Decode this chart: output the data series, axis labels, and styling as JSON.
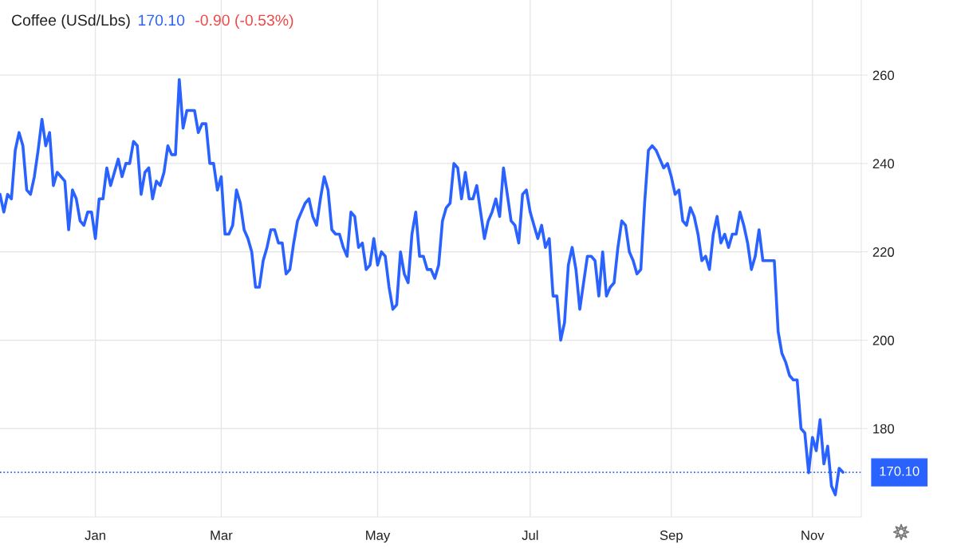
{
  "chart_data": {
    "type": "line",
    "title": "Coffee (USd/Lbs)",
    "annotations": [
      "170.10",
      "-0.90 (-0.53%)"
    ],
    "categories": [
      null,
      null,
      null,
      null,
      null,
      null,
      null,
      null,
      null,
      null,
      null,
      null,
      null,
      null,
      null,
      null,
      null,
      null,
      null,
      null,
      null,
      null,
      null,
      null,
      null,
      "Jan",
      null,
      null,
      null,
      null,
      null,
      null,
      null,
      null,
      null,
      null,
      null,
      null,
      null,
      null,
      null,
      null,
      null,
      null,
      null,
      null,
      null,
      null,
      null,
      null,
      null,
      null,
      null,
      null,
      null,
      null,
      null,
      null,
      "Mar",
      null,
      null,
      null,
      null,
      null,
      null,
      null,
      null,
      null,
      null,
      null,
      null,
      null,
      null,
      null,
      null,
      null,
      null,
      null,
      null,
      null,
      null,
      null,
      null,
      null,
      null,
      null,
      null,
      null,
      null,
      null,
      null,
      null,
      null,
      null,
      null,
      null,
      null,
      null,
      null,
      "May",
      null,
      null,
      null,
      null,
      null,
      null,
      null,
      null,
      null,
      null,
      null,
      null,
      null,
      null,
      null,
      null,
      null,
      null,
      null,
      null,
      null,
      null,
      null,
      null,
      null,
      null,
      null,
      null,
      null,
      null,
      null,
      null,
      null,
      null,
      null,
      null,
      null,
      null,
      null,
      "Jul",
      null,
      null,
      null,
      null,
      null,
      null,
      null,
      null,
      null,
      null,
      null,
      null,
      null,
      null,
      null,
      null,
      null,
      null,
      null,
      null,
      null,
      null,
      null,
      null,
      null,
      null,
      null,
      null,
      null,
      null,
      null,
      null,
      null,
      null,
      null,
      null,
      "Sep",
      null,
      null,
      null,
      null,
      null,
      null,
      null,
      null,
      null,
      null,
      null,
      null,
      null,
      null,
      null,
      null,
      null,
      null,
      null,
      null,
      null,
      null,
      null,
      null,
      null,
      null,
      null,
      null,
      null,
      null,
      null,
      null,
      null,
      null,
      null,
      null,
      "Nov",
      null,
      null,
      null,
      null,
      null,
      null,
      null,
      null
    ],
    "series": [
      {
        "color": "#2962ff",
        "values": [
          233,
          229,
          233,
          232,
          243,
          247,
          244,
          234,
          233,
          237,
          243,
          250,
          244,
          247,
          235,
          238,
          237,
          236,
          225,
          234,
          232,
          227,
          226,
          229,
          229,
          223,
          232,
          232,
          239,
          235,
          238,
          241,
          237,
          240,
          240,
          245,
          244,
          233,
          238,
          239,
          232,
          236,
          235,
          238,
          244,
          242,
          242,
          259,
          248,
          252,
          252,
          252,
          247,
          249,
          249,
          240,
          240,
          234,
          237,
          224,
          224,
          226,
          234,
          231,
          225,
          223,
          220,
          212,
          212,
          218,
          221,
          225,
          225,
          222,
          222,
          215,
          216,
          222,
          227,
          229,
          231,
          232,
          228,
          226,
          232,
          237,
          234,
          225,
          224,
          224,
          221,
          219,
          229,
          228,
          221,
          222,
          216,
          217,
          223,
          217,
          220,
          219,
          212,
          207,
          208,
          220,
          215,
          213,
          224,
          229,
          219,
          219,
          216,
          216,
          214,
          217,
          227,
          230,
          231,
          240,
          239,
          232,
          238,
          232,
          232,
          235,
          229,
          223,
          227,
          229,
          232,
          228,
          239,
          233,
          227,
          226,
          222,
          233,
          234,
          229,
          226,
          223,
          226,
          221,
          223,
          210,
          210,
          200,
          204,
          217,
          221,
          216,
          207,
          213,
          219,
          219,
          218,
          210,
          220,
          210,
          212,
          213,
          221,
          227,
          226,
          220,
          218,
          215,
          216,
          231,
          243,
          244,
          243,
          241,
          239,
          240,
          237,
          233,
          234,
          227,
          226,
          230,
          228,
          224,
          218,
          219,
          216,
          224,
          228,
          222,
          224,
          221,
          224,
          224,
          229,
          226,
          222,
          216,
          219,
          225,
          218,
          218,
          218,
          218,
          202,
          197,
          195,
          192,
          191,
          191,
          180,
          179,
          170,
          178,
          175,
          182,
          172,
          176,
          167,
          165,
          171,
          170.1
        ]
      }
    ],
    "ylim": [
      160,
      277
    ],
    "yticks": [
      180,
      200,
      220,
      240,
      260
    ],
    "ref_lines": [
      {
        "axis": "y",
        "value": 170.1,
        "label": "170.10",
        "color": "#2962ff",
        "line_style": "dotted"
      }
    ],
    "grid": true
  }
}
